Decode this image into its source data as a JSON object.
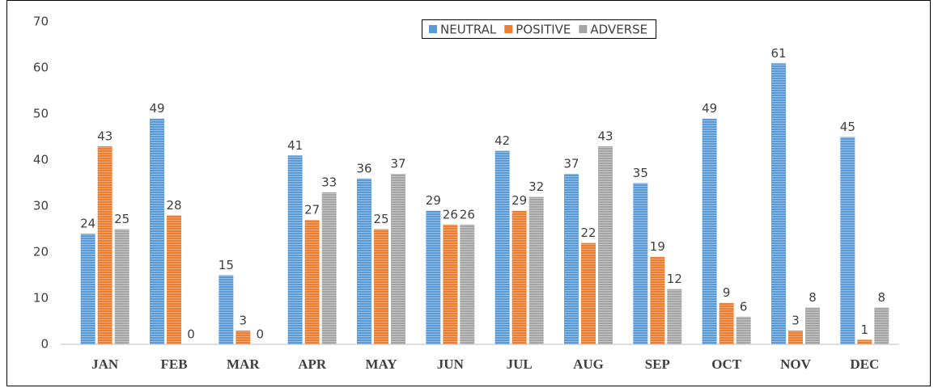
{
  "chart_data": {
    "type": "bar",
    "categories": [
      "JAN",
      "FEB",
      "MAR",
      "APR",
      "MAY",
      "JUN",
      "JUL",
      "AUG",
      "SEP",
      "OCT",
      "NOV",
      "DEC"
    ],
    "series": [
      {
        "name": "NEUTRAL",
        "color": "#5b9bd5",
        "values": [
          24,
          49,
          15,
          41,
          36,
          29,
          42,
          37,
          35,
          49,
          61,
          45
        ]
      },
      {
        "name": "POSITIVE",
        "color": "#ed7d31",
        "values": [
          43,
          28,
          3,
          27,
          25,
          26,
          29,
          22,
          19,
          9,
          3,
          1
        ]
      },
      {
        "name": "ADVERSE",
        "color": "#a5a5a5",
        "values": [
          25,
          0,
          0,
          33,
          37,
          26,
          32,
          43,
          12,
          6,
          8,
          8
        ]
      }
    ],
    "ylim": [
      0,
      70
    ],
    "yticks": [
      0,
      10,
      20,
      30,
      40,
      50,
      60,
      70
    ],
    "grid": false,
    "legend": "top"
  }
}
